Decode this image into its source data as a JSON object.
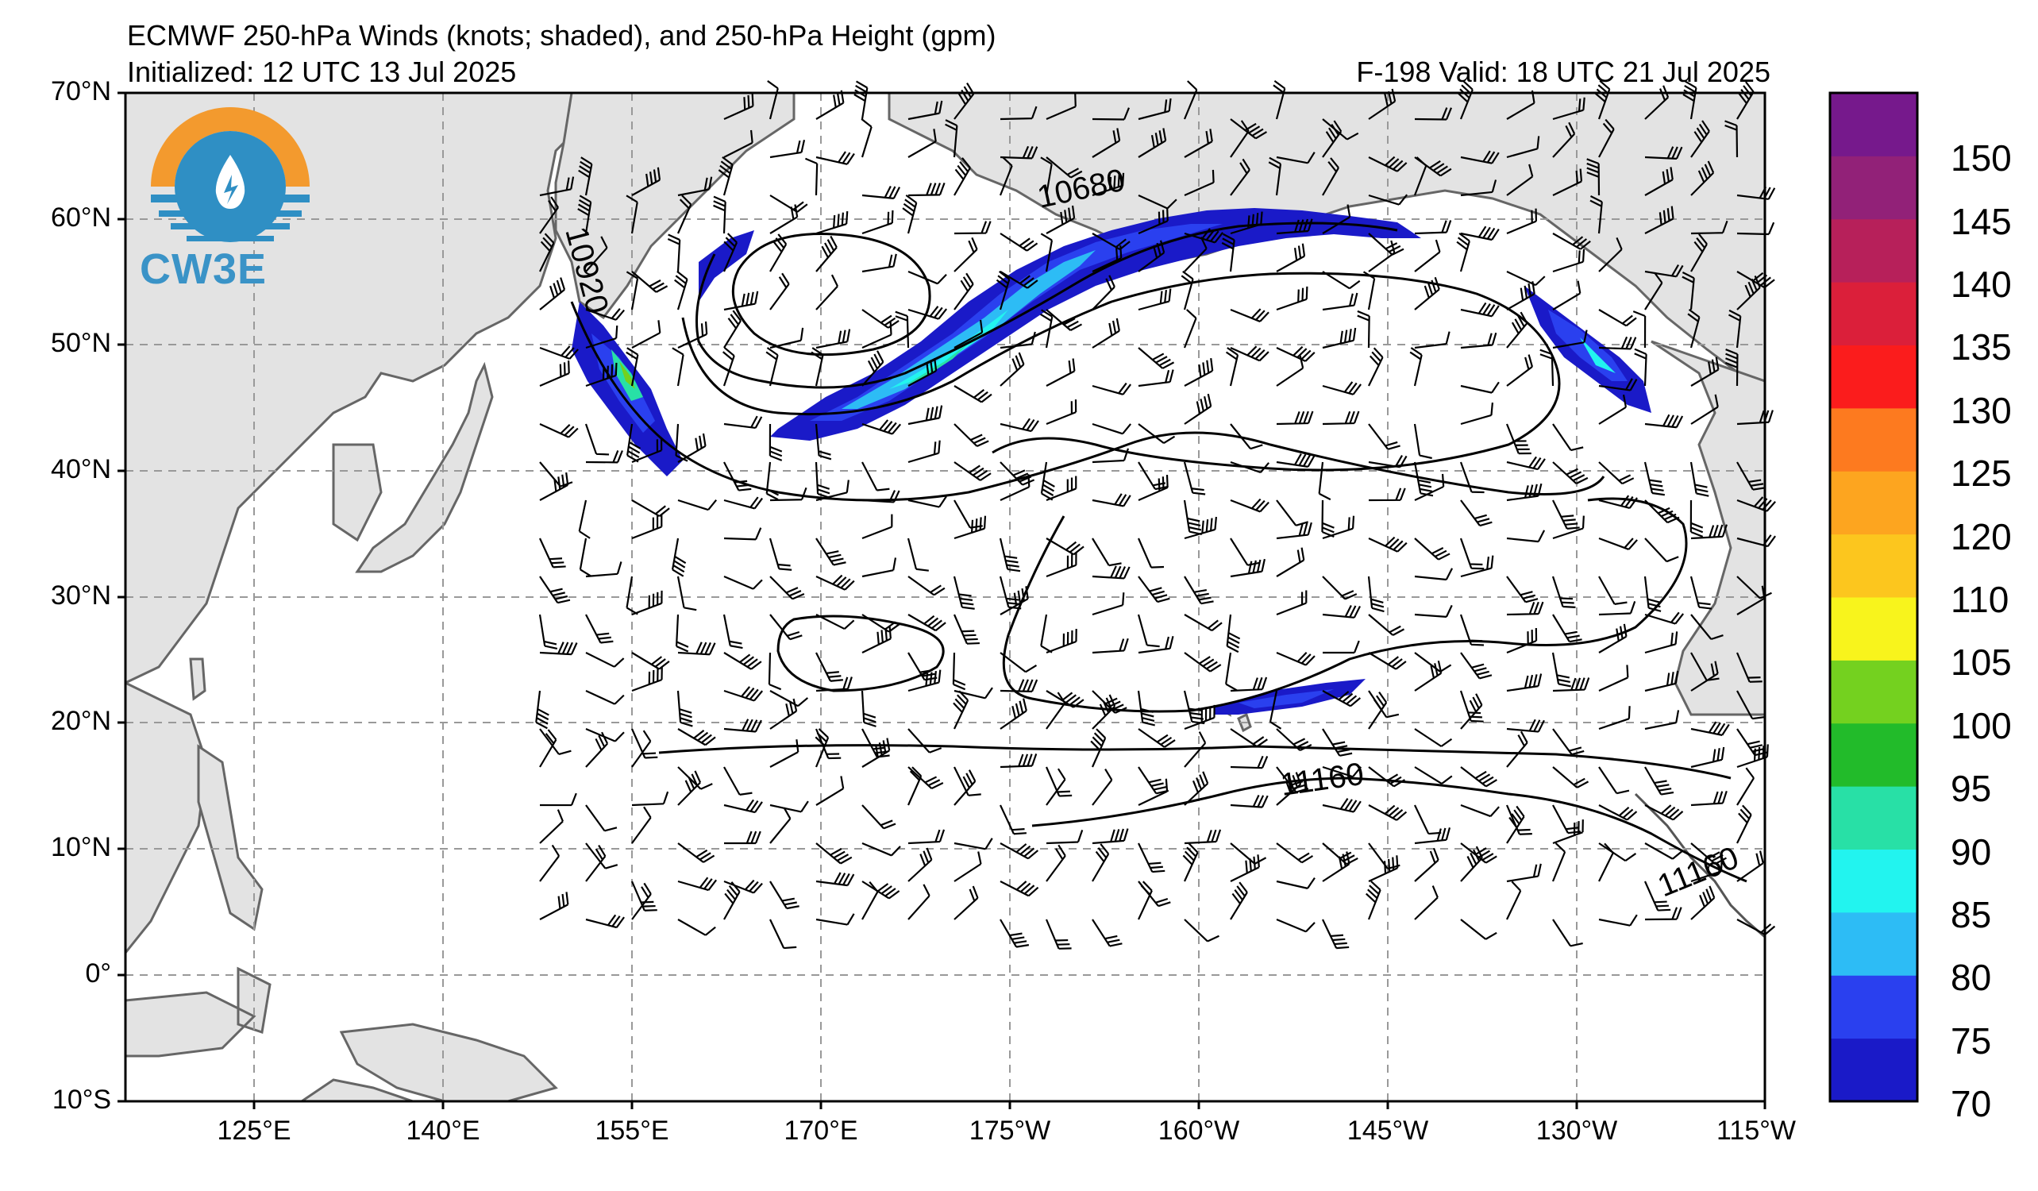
{
  "header": {
    "title": "ECMWF 250-hPa Winds (knots; shaded), and 250-hPa Height (gpm)",
    "initialized": "Initialized: 12 UTC 13 Jul 2025",
    "valid": "F-198  Valid: 18 UTC 21 Jul 2025"
  },
  "logo": {
    "text": "CW3E",
    "colors": {
      "orange": "#f39a2e",
      "blue": "#2f8fc4"
    }
  },
  "map": {
    "lat_labels": [
      "70°N",
      "60°N",
      "50°N",
      "40°N",
      "30°N",
      "20°N",
      "10°N",
      "0°",
      "10°S"
    ],
    "lon_labels": [
      "125°E",
      "140°E",
      "155°E",
      "170°E",
      "175°W",
      "160°W",
      "145°W",
      "130°W",
      "115°W"
    ],
    "contour_labels": [
      "10680",
      "10920",
      "11160",
      "11160"
    ],
    "land_color": "#e3e3e3",
    "ocean_color": "#ffffff"
  },
  "colorbar": {
    "ticks": [
      "150",
      "145",
      "140",
      "135",
      "130",
      "125",
      "120",
      "110",
      "105",
      "100",
      "95",
      "90",
      "85",
      "80",
      "75",
      "70"
    ],
    "colors": [
      "#1a1ac8",
      "#2a40ef",
      "#2dbcf5",
      "#22f4ef",
      "#28e0a6",
      "#22bb2a",
      "#74d11f",
      "#f8f41c",
      "#fcc61e",
      "#fda51f",
      "#fd7a1f",
      "#fb1c1c",
      "#db1f3a",
      "#b7205a",
      "#922178",
      "#76198c"
    ]
  }
}
